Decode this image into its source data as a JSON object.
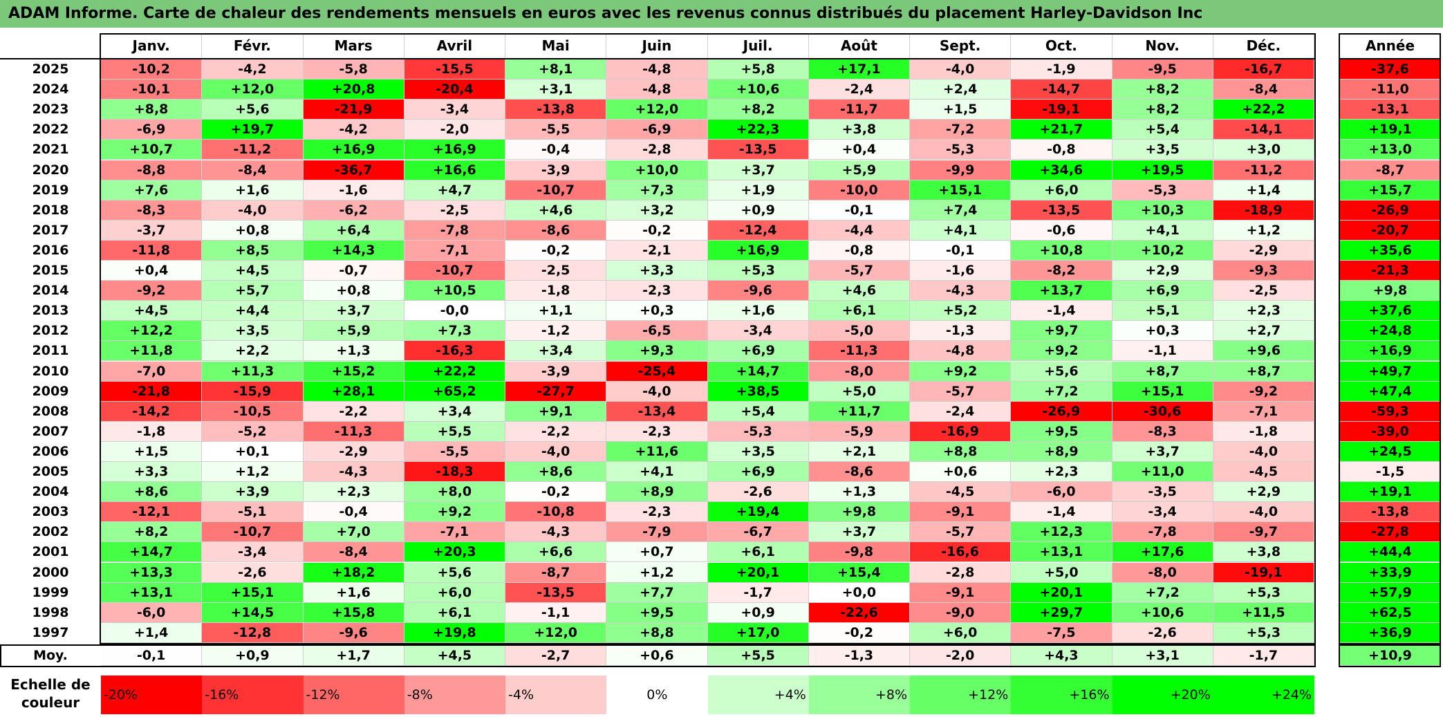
{
  "title": "ADAM Informe. Carte de chaleur des rendements mensuels en euros avec les revenus connus distribués du placement Harley-Davidson Inc",
  "chart_data": {
    "type": "heatmap",
    "title": "ADAM Informe. Carte de chaleur des rendements mensuels en euros avec les revenus connus distribués du placement Harley-Davidson Inc",
    "columns": [
      "Janv.",
      "Févr.",
      "Mars",
      "Avril",
      "Mai",
      "Juin",
      "Juil.",
      "Août",
      "Sept.",
      "Oct.",
      "Nov.",
      "Déc."
    ],
    "year_column_label": "Année",
    "rows": [
      {
        "year": "2025",
        "values": [
          "-10,2",
          "-4,2",
          "-5,8",
          "-15,5",
          "+8,1",
          "-4,8",
          "+5,8",
          "+17,1",
          "-4,0",
          "-1,9",
          "-9,5",
          "-16,7"
        ],
        "annual": "-37,6"
      },
      {
        "year": "2024",
        "values": [
          "-10,1",
          "+12,0",
          "+20,8",
          "-20,4",
          "+3,1",
          "-4,8",
          "+10,6",
          "-2,4",
          "+2,4",
          "-14,7",
          "+8,2",
          "-8,4"
        ],
        "annual": "-11,0"
      },
      {
        "year": "2023",
        "values": [
          "+8,8",
          "+5,6",
          "-21,9",
          "-3,4",
          "-13,8",
          "+12,0",
          "+8,2",
          "-11,7",
          "+1,5",
          "-19,1",
          "+8,2",
          "+22,2"
        ],
        "annual": "-13,1"
      },
      {
        "year": "2022",
        "values": [
          "-6,9",
          "+19,7",
          "-4,2",
          "-2,0",
          "-5,5",
          "-6,9",
          "+22,3",
          "+3,8",
          "-7,2",
          "+21,7",
          "+5,4",
          "-14,1"
        ],
        "annual": "+19,1"
      },
      {
        "year": "2021",
        "values": [
          "+10,7",
          "-11,2",
          "+16,9",
          "+16,9",
          "-0,4",
          "-2,8",
          "-13,5",
          "+0,4",
          "-5,3",
          "-0,8",
          "+3,5",
          "+3,0"
        ],
        "annual": "+13,0"
      },
      {
        "year": "2020",
        "values": [
          "-8,8",
          "-8,4",
          "-36,7",
          "+16,6",
          "-3,9",
          "+10,0",
          "+3,7",
          "+5,9",
          "-9,9",
          "+34,6",
          "+19,5",
          "-11,2"
        ],
        "annual": "-8,7"
      },
      {
        "year": "2019",
        "values": [
          "+7,6",
          "+1,6",
          "-1,6",
          "+4,7",
          "-10,7",
          "+7,3",
          "+1,9",
          "-10,0",
          "+15,1",
          "+6,0",
          "-5,3",
          "+1,4"
        ],
        "annual": "+15,7"
      },
      {
        "year": "2018",
        "values": [
          "-8,3",
          "-4,0",
          "-6,2",
          "-2,5",
          "+4,6",
          "+3,2",
          "+0,9",
          "-0,1",
          "+7,4",
          "-13,5",
          "+10,3",
          "-18,9"
        ],
        "annual": "-26,9"
      },
      {
        "year": "2017",
        "values": [
          "-3,7",
          "+0,8",
          "+6,4",
          "-7,8",
          "-8,6",
          "-0,2",
          "-12,4",
          "-4,4",
          "+4,1",
          "-0,6",
          "+4,1",
          "+1,2"
        ],
        "annual": "-20,7"
      },
      {
        "year": "2016",
        "values": [
          "-11,8",
          "+8,5",
          "+14,3",
          "-7,1",
          "-0,2",
          "-2,1",
          "+16,9",
          "-0,8",
          "-0,1",
          "+10,8",
          "+10,2",
          "-2,9"
        ],
        "annual": "+35,6"
      },
      {
        "year": "2015",
        "values": [
          "+0,4",
          "+4,5",
          "-0,7",
          "-10,7",
          "-2,5",
          "+3,3",
          "+5,3",
          "-5,7",
          "-1,6",
          "-8,2",
          "+2,9",
          "-9,3"
        ],
        "annual": "-21,3"
      },
      {
        "year": "2014",
        "values": [
          "-9,2",
          "+5,7",
          "+0,8",
          "+10,5",
          "-1,8",
          "-2,3",
          "-9,6",
          "+4,6",
          "-4,3",
          "+13,7",
          "+6,9",
          "-2,5"
        ],
        "annual": "+9,8"
      },
      {
        "year": "2013",
        "values": [
          "+4,5",
          "+4,4",
          "+3,7",
          "-0,0",
          "+1,1",
          "+0,3",
          "+1,6",
          "+6,1",
          "+5,2",
          "-1,4",
          "+5,1",
          "+2,3"
        ],
        "annual": "+37,6"
      },
      {
        "year": "2012",
        "values": [
          "+12,2",
          "+3,5",
          "+5,9",
          "+7,3",
          "-1,2",
          "-6,5",
          "-3,4",
          "-5,0",
          "-1,3",
          "+9,7",
          "+0,3",
          "+2,7"
        ],
        "annual": "+24,8"
      },
      {
        "year": "2011",
        "values": [
          "+11,8",
          "+2,2",
          "+1,3",
          "-16,3",
          "+3,4",
          "+9,3",
          "+6,9",
          "-11,3",
          "-4,8",
          "+9,2",
          "-1,1",
          "+9,6"
        ],
        "annual": "+16,9"
      },
      {
        "year": "2010",
        "values": [
          "-7,0",
          "+11,3",
          "+15,2",
          "+22,2",
          "-3,9",
          "-25,4",
          "+14,7",
          "-8,0",
          "+9,2",
          "+5,6",
          "+8,7",
          "+8,7"
        ],
        "annual": "+49,7"
      },
      {
        "year": "2009",
        "values": [
          "-21,8",
          "-15,9",
          "+28,1",
          "+65,2",
          "-27,7",
          "-4,0",
          "+38,5",
          "+5,0",
          "-5,7",
          "+7,2",
          "+15,1",
          "-9,2"
        ],
        "annual": "+47,4"
      },
      {
        "year": "2008",
        "values": [
          "-14,2",
          "-10,5",
          "-2,2",
          "+3,4",
          "+9,1",
          "-13,4",
          "+5,4",
          "+11,7",
          "-2,4",
          "-26,9",
          "-30,6",
          "-7,1"
        ],
        "annual": "-59,3"
      },
      {
        "year": "2007",
        "values": [
          "-1,8",
          "-5,2",
          "-11,3",
          "+5,5",
          "-2,2",
          "-2,3",
          "-5,3",
          "-5,9",
          "-16,9",
          "+9,5",
          "-8,3",
          "-1,8"
        ],
        "annual": "-39,0"
      },
      {
        "year": "2006",
        "values": [
          "+1,5",
          "+0,1",
          "-2,9",
          "-5,5",
          "-4,0",
          "+11,6",
          "+3,5",
          "+2,1",
          "+8,8",
          "+8,9",
          "+3,7",
          "-4,0"
        ],
        "annual": "+24,5"
      },
      {
        "year": "2005",
        "values": [
          "+3,3",
          "+1,2",
          "-4,3",
          "-18,3",
          "+8,6",
          "+4,1",
          "+6,9",
          "-8,6",
          "+0,6",
          "+2,3",
          "+11,0",
          "-4,5"
        ],
        "annual": "-1,5"
      },
      {
        "year": "2004",
        "values": [
          "+8,6",
          "+3,9",
          "+2,3",
          "+8,0",
          "-0,2",
          "+8,9",
          "-2,6",
          "+1,3",
          "-4,5",
          "-6,0",
          "-3,5",
          "+2,9"
        ],
        "annual": "+19,1"
      },
      {
        "year": "2003",
        "values": [
          "-12,1",
          "-5,1",
          "-0,4",
          "+9,2",
          "-10,8",
          "-2,3",
          "+19,4",
          "+9,8",
          "-9,1",
          "-1,4",
          "-3,4",
          "-4,0"
        ],
        "annual": "-13,8"
      },
      {
        "year": "2002",
        "values": [
          "+8,2",
          "-10,7",
          "+7,0",
          "-7,1",
          "-4,3",
          "-7,9",
          "-6,7",
          "+3,7",
          "-5,7",
          "+12,3",
          "-7,8",
          "-9,7"
        ],
        "annual": "-27,8"
      },
      {
        "year": "2001",
        "values": [
          "+14,7",
          "-3,4",
          "-8,4",
          "+20,3",
          "+6,6",
          "+0,7",
          "+6,1",
          "-9,8",
          "-16,6",
          "+13,1",
          "+17,6",
          "+3,8"
        ],
        "annual": "+44,4"
      },
      {
        "year": "2000",
        "values": [
          "+13,3",
          "-2,6",
          "+18,2",
          "+5,6",
          "-8,7",
          "+1,2",
          "+20,1",
          "+15,4",
          "-2,8",
          "+5,0",
          "-8,0",
          "-19,1"
        ],
        "annual": "+33,9"
      },
      {
        "year": "1999",
        "values": [
          "+13,1",
          "+15,1",
          "+1,6",
          "+6,0",
          "-13,5",
          "+7,7",
          "-1,7",
          "+0,0",
          "-9,1",
          "+20,1",
          "+7,2",
          "+5,3"
        ],
        "annual": "+57,9"
      },
      {
        "year": "1998",
        "values": [
          "-6,0",
          "+14,5",
          "+15,8",
          "+6,1",
          "-1,1",
          "+9,5",
          "+0,9",
          "-22,6",
          "-9,0",
          "+29,7",
          "+10,6",
          "+11,5"
        ],
        "annual": "+62,5"
      },
      {
        "year": "1997",
        "values": [
          "+1,4",
          "-12,8",
          "-9,6",
          "+19,8",
          "+12,0",
          "+8,8",
          "+17,0",
          "-0,2",
          "+6,0",
          "-7,5",
          "-2,6",
          "+5,3"
        ],
        "annual": "+36,9"
      }
    ],
    "average": {
      "label": "Moy.",
      "values": [
        "-0,1",
        "+0,9",
        "+1,7",
        "+4,5",
        "-2,7",
        "+0,6",
        "+5,5",
        "-1,3",
        "-2,0",
        "+4,3",
        "+3,1",
        "-1,7"
      ],
      "annual": "+10,9"
    },
    "scale": {
      "label_line1": "Echelle de",
      "label_line2": "couleur",
      "items": [
        {
          "label": "-20%",
          "value": -20
        },
        {
          "label": "-16%",
          "value": -16
        },
        {
          "label": "-12%",
          "value": -12
        },
        {
          "label": "-8%",
          "value": -8
        },
        {
          "label": "-4%",
          "value": -4
        },
        {
          "label": "0%",
          "value": 0
        },
        {
          "label": "+4%",
          "value": 4
        },
        {
          "label": "+8%",
          "value": 8
        },
        {
          "label": "+12%",
          "value": 12
        },
        {
          "label": "+16%",
          "value": 16
        },
        {
          "label": "+20%",
          "value": 20
        },
        {
          "label": "+24%",
          "value": 24
        }
      ]
    },
    "colors": {
      "negative": "#ff0000",
      "neutral": "#ffffff",
      "positive": "#00ff00",
      "title_bg": "#7bc87b"
    }
  }
}
